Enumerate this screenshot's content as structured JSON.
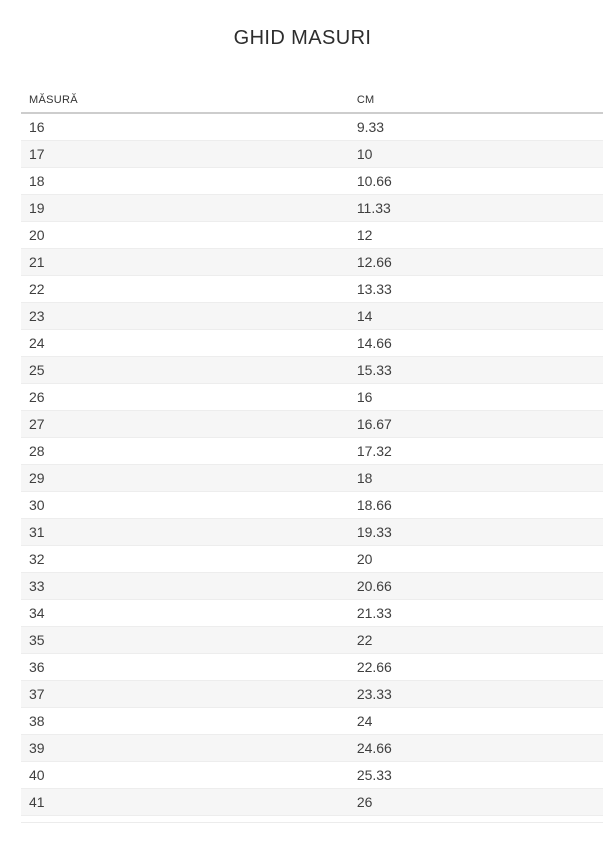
{
  "page": {
    "title": "GHID MASURI"
  },
  "table": {
    "headers": [
      "MĂSURĂ",
      "CM"
    ],
    "rows": [
      {
        "size": "16",
        "cm": "9.33"
      },
      {
        "size": "17",
        "cm": "10"
      },
      {
        "size": "18",
        "cm": "10.66"
      },
      {
        "size": "19",
        "cm": "11.33"
      },
      {
        "size": "20",
        "cm": "12"
      },
      {
        "size": "21",
        "cm": "12.66"
      },
      {
        "size": "22",
        "cm": "13.33"
      },
      {
        "size": "23",
        "cm": "14"
      },
      {
        "size": "24",
        "cm": "14.66"
      },
      {
        "size": "25",
        "cm": "15.33"
      },
      {
        "size": "26",
        "cm": "16"
      },
      {
        "size": "27",
        "cm": "16.67"
      },
      {
        "size": "28",
        "cm": "17.32"
      },
      {
        "size": "29",
        "cm": "18"
      },
      {
        "size": "30",
        "cm": "18.66"
      },
      {
        "size": "31",
        "cm": "19.33"
      },
      {
        "size": "32",
        "cm": "20"
      },
      {
        "size": "33",
        "cm": "20.66"
      },
      {
        "size": "34",
        "cm": "21.33"
      },
      {
        "size": "35",
        "cm": "22"
      },
      {
        "size": "36",
        "cm": "22.66"
      },
      {
        "size": "37",
        "cm": "23.33"
      },
      {
        "size": "38",
        "cm": "24"
      },
      {
        "size": "39",
        "cm": "24.66"
      },
      {
        "size": "40",
        "cm": "25.33"
      },
      {
        "size": "41",
        "cm": "26"
      }
    ]
  },
  "colors": {
    "stripe": "#f6f6f6",
    "header_rule": "#cdcdcd",
    "row_rule": "#ededed",
    "text": "#3f3f3f",
    "title_text": "#2d2d2d"
  }
}
